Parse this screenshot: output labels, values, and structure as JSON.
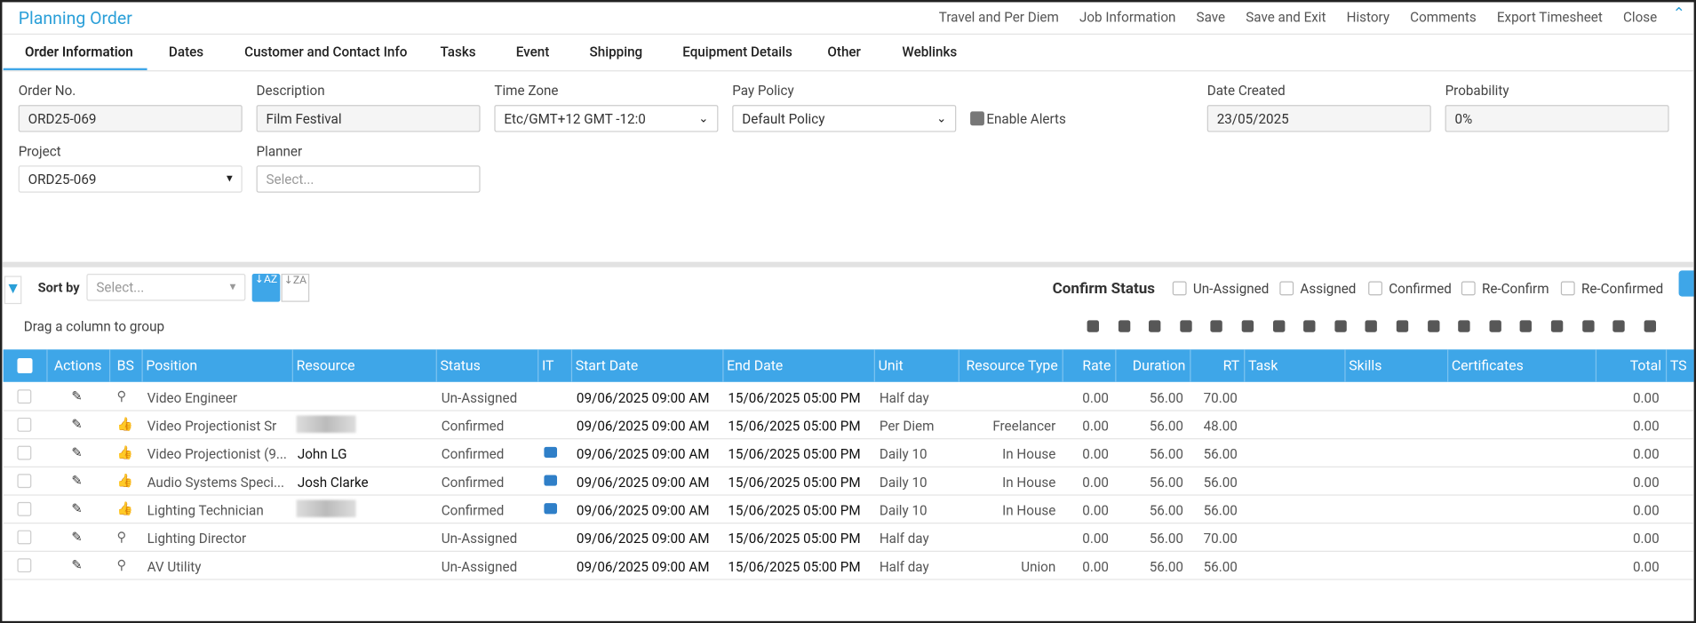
{
  "header": {
    "title": "Planning Order",
    "menu": [
      "Travel and Per Diem",
      "Job Information",
      "Save",
      "Save and Exit",
      "History",
      "Comments",
      "Export Timesheet",
      "Close"
    ]
  },
  "tabs": [
    "Order Information",
    "Dates",
    "Customer and Contact Info",
    "Tasks",
    "Event",
    "Shipping",
    "Equipment Details",
    "Other",
    "Weblinks"
  ],
  "form": {
    "order_no": {
      "label": "Order No.",
      "value": "ORD25-069"
    },
    "description": {
      "label": "Description",
      "value": "Film Festival"
    },
    "time_zone": {
      "label": "Time Zone",
      "value": "Etc/GMT+12 GMT -12:0"
    },
    "pay_policy": {
      "label": "Pay Policy",
      "value": "Default Policy"
    },
    "enable_alerts": "Enable Alerts",
    "date_created": {
      "label": "Date Created",
      "value": "23/05/2025"
    },
    "probability": {
      "label": "Probability",
      "value": "0%"
    },
    "project": {
      "label": "Project",
      "value": "ORD25-069"
    },
    "planner": {
      "label": "Planner",
      "placeholder": "Select..."
    }
  },
  "toolbar": {
    "sort_label": "Sort by",
    "sort_placeholder": "Select...",
    "confirm_status": "Confirm Status",
    "status_options": [
      "Un-Assigned",
      "Assigned",
      "Confirmed",
      "Re-Confirm",
      "Re-Confirmed"
    ],
    "group_hint": "Drag a column to group"
  },
  "table": {
    "columns": [
      "Actions",
      "BS",
      "Position",
      "Resource",
      "Status",
      "IT",
      "Start Date",
      "End Date",
      "Unit",
      "Resource Type",
      "Rate",
      "Duration",
      "RT",
      "Task",
      "Skills",
      "Certificates",
      "Total",
      "TS"
    ],
    "rows": [
      {
        "position": "Video Engineer",
        "status": "Un-Assigned",
        "start_date": "09/06/2025 09:00 AM",
        "end_date": "15/06/2025 05:00 PM",
        "unit": "Half day",
        "rate": "0.00",
        "duration": "56.00",
        "rt": "70.00",
        "total": "0.00"
      },
      {
        "position": "Video Projectionist Sr",
        "status": "Confirmed",
        "start_date": "09/06/2025 09:00 AM",
        "end_date": "15/06/2025 05:00 PM",
        "unit": "Per Diem",
        "resource_type": "Freelancer",
        "rate": "0.00",
        "duration": "56.00",
        "rt": "48.00",
        "total": "0.00"
      },
      {
        "position": "Video Projectionist (9...",
        "resource": "John LG",
        "status": "Confirmed",
        "start_date": "09/06/2025 09:00 AM",
        "end_date": "15/06/2025 05:00 PM",
        "unit": "Daily 10",
        "resource_type": "In House",
        "rate": "0.00",
        "duration": "56.00",
        "rt": "56.00",
        "total": "0.00"
      },
      {
        "position": "Audio Systems Speci...",
        "resource": "Josh Clarke",
        "status": "Confirmed",
        "start_date": "09/06/2025 09:00 AM",
        "end_date": "15/06/2025 05:00 PM",
        "unit": "Daily 10",
        "resource_type": "In House",
        "rate": "0.00",
        "duration": "56.00",
        "rt": "56.00",
        "total": "0.00"
      },
      {
        "position": "Lighting Technician",
        "status": "Confirmed",
        "start_date": "09/06/2025 09:00 AM",
        "end_date": "15/06/2025 05:00 PM",
        "unit": "Daily 10",
        "resource_type": "In House",
        "rate": "0.00",
        "duration": "56.00",
        "rt": "56.00",
        "total": "0.00"
      },
      {
        "position": "Lighting Director",
        "status": "Un-Assigned",
        "start_date": "09/06/2025 09:00 AM",
        "end_date": "15/06/2025 05:00 PM",
        "unit": "Half day",
        "rate": "0.00",
        "duration": "56.00",
        "rt": "70.00",
        "total": "0.00"
      },
      {
        "position": "AV Utility",
        "status": "Un-Assigned",
        "start_date": "09/06/2025 09:00 AM",
        "end_date": "15/06/2025 05:00 PM",
        "unit": "Half day",
        "resource_type": "Union",
        "rate": "0.00",
        "duration": "56.00",
        "rt": "56.00",
        "total": "0.00"
      }
    ]
  }
}
